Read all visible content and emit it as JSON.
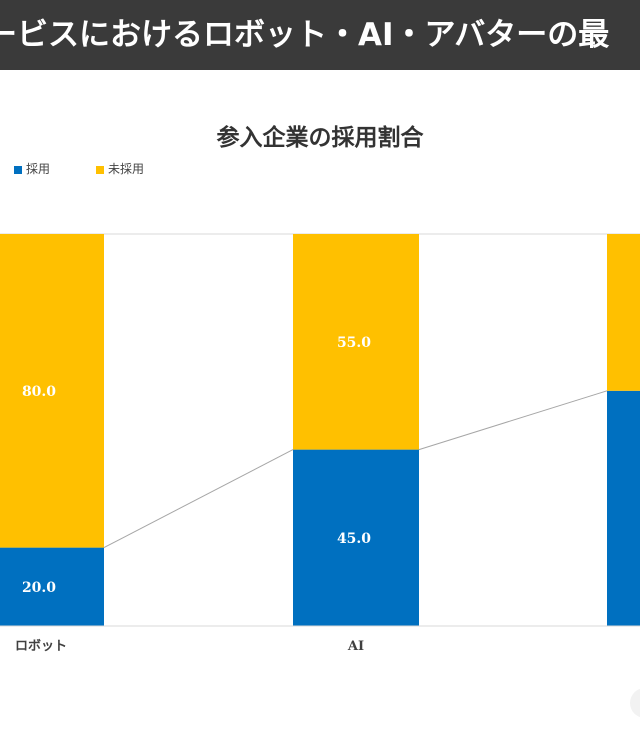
{
  "banner": {
    "title": "ービスにおけるロボット・AI・アバターの最"
  },
  "colors": {
    "adopted": "#0070C0",
    "not_adopted": "#FFC000",
    "banner_bg": "#3a3a3a"
  },
  "chart_data": {
    "type": "bar",
    "stacked": "percent",
    "title": "参入企業の採用割合",
    "categories": [
      "ロボット",
      "AI",
      ""
    ],
    "series": [
      {
        "name": "採用",
        "values": [
          20.0,
          45.0,
          60.0
        ]
      },
      {
        "name": "未採用",
        "values": [
          80.0,
          55.0,
          40.0
        ]
      }
    ],
    "ylim": [
      0,
      100
    ],
    "legend": "top-left",
    "grid": false,
    "series_lines": true
  }
}
